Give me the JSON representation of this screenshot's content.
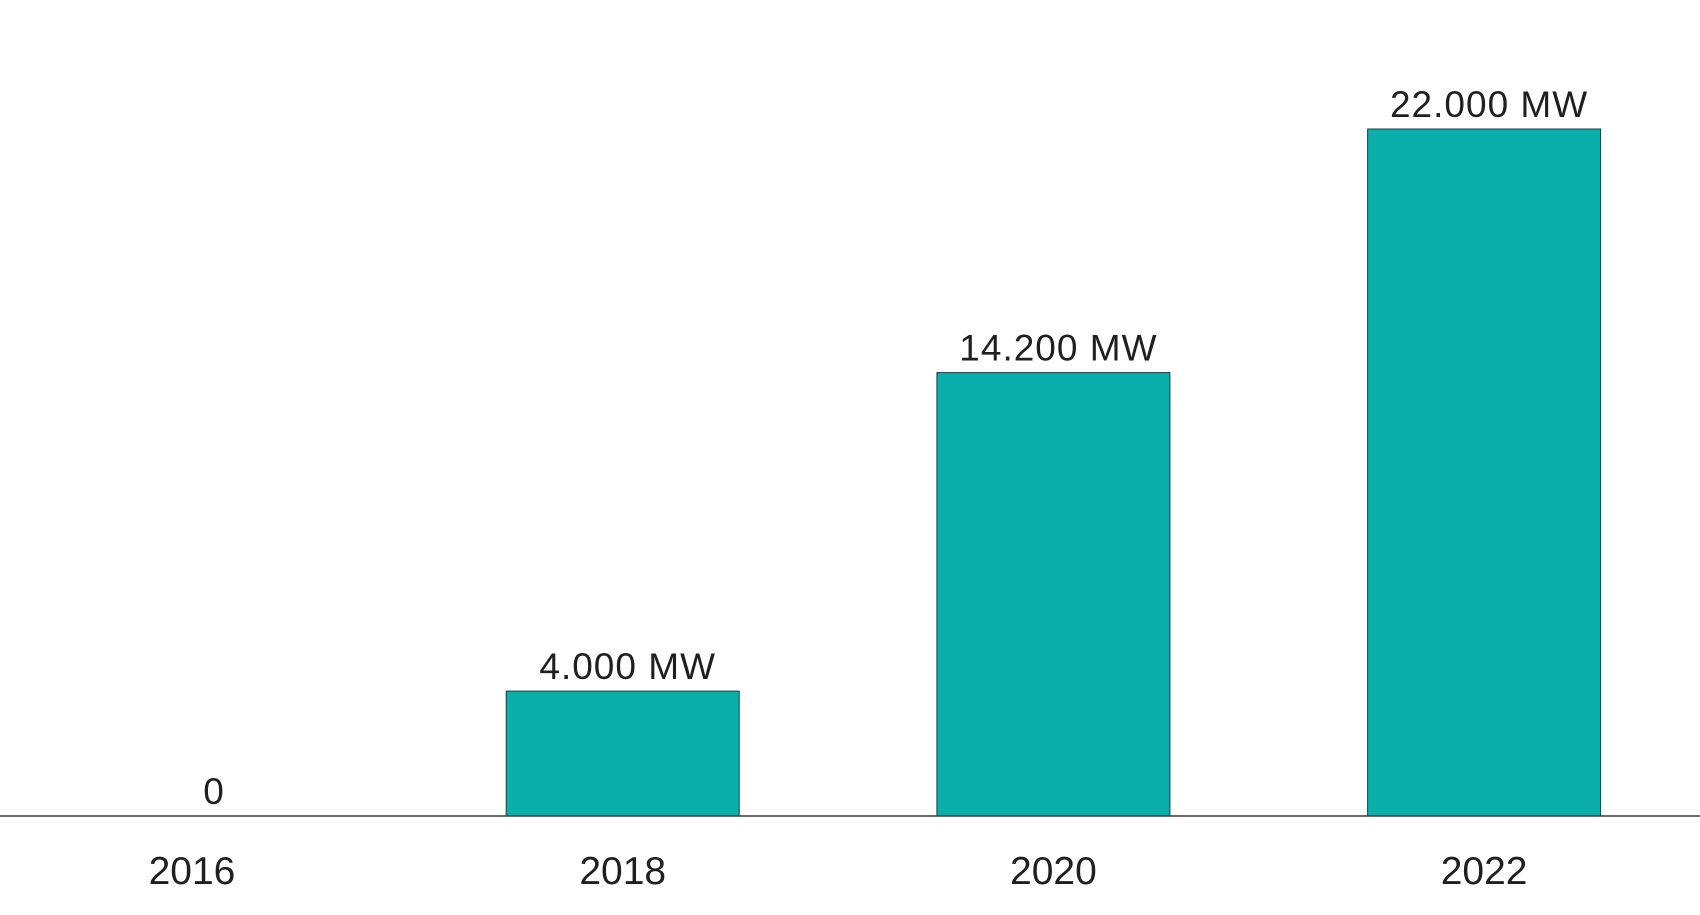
{
  "chart_data": {
    "type": "bar",
    "categories": [
      "2016",
      "2018",
      "2020",
      "2022"
    ],
    "values": [
      0,
      4000,
      14200,
      22000
    ],
    "value_labels": [
      "0",
      "4.000 MW",
      "14.200 MW",
      "22.000 MW"
    ],
    "color": "#0aafab"
  }
}
